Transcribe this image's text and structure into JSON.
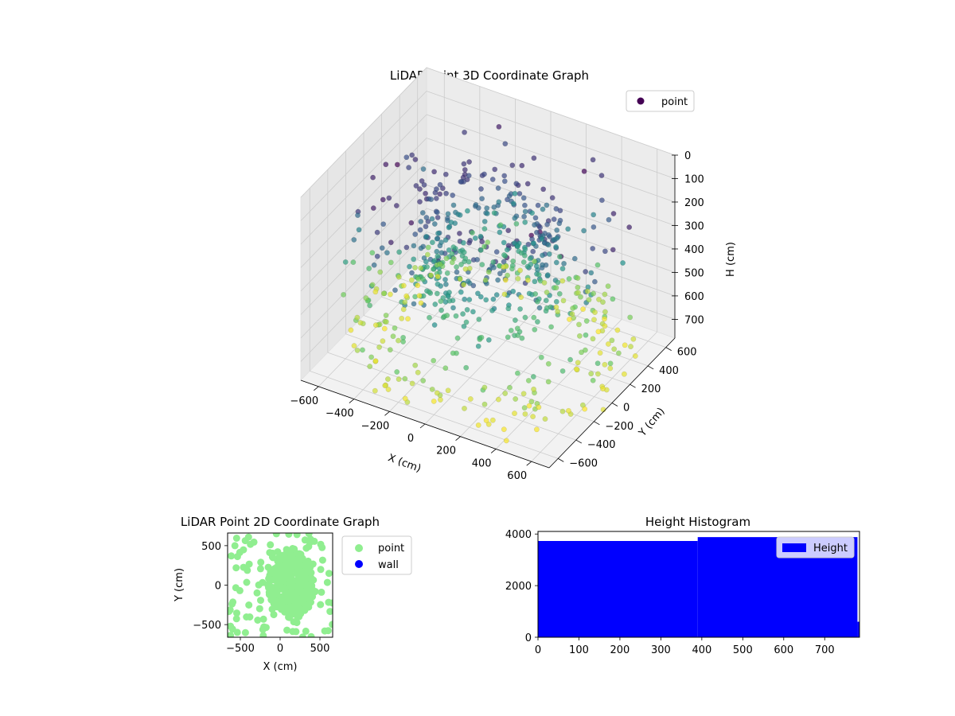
{
  "figure": {
    "background": "#ffffff",
    "axes_color": "#000000",
    "pane_color": "#f2f2f2",
    "grid_color": "#cccccc"
  },
  "chart_data": [
    {
      "type": "scatter",
      "projection": "3d",
      "title": "LiDAR Point 3D Coordinate Graph",
      "xlabel": "X (cm)",
      "ylabel": "Y (cm)",
      "zlabel": "H (cm)",
      "xlim": [
        -700,
        700
      ],
      "ylim": [
        -700,
        700
      ],
      "zlim": [
        0,
        780
      ],
      "z_inverted": true,
      "xticks": [
        -600,
        -400,
        -200,
        0,
        200,
        400,
        600
      ],
      "yticks": [
        -600,
        -400,
        -200,
        0,
        200,
        400,
        600
      ],
      "zticks": [
        0,
        100,
        200,
        300,
        400,
        500,
        600,
        700
      ],
      "colormap": "viridis",
      "colormap_stops": [
        "#440154",
        "#3b528b",
        "#21918c",
        "#5ec962",
        "#fde725"
      ],
      "grid": true,
      "legend": {
        "placement": "upper-right",
        "entries": [
          {
            "label": "point",
            "color": "#440154"
          }
        ]
      },
      "series": [
        {
          "name": "point",
          "description_points": "rings of points at radius 300–700 cm sampled over heights 0–780 cm"
        }
      ]
    },
    {
      "type": "scatter",
      "title": "LiDAR Point 2D Coordinate Graph",
      "xlabel": "X (cm)",
      "ylabel": "Y (cm)",
      "xlim": [
        -660,
        660
      ],
      "ylim": [
        -660,
        660
      ],
      "xticks": [
        -500,
        0,
        500
      ],
      "yticks": [
        -500,
        0,
        500
      ],
      "grid": false,
      "legend": {
        "placement": "outside-right",
        "entries": [
          {
            "label": "point",
            "color": "#90ee90"
          },
          {
            "label": "wall",
            "color": "#0000ff"
          }
        ]
      },
      "series": [
        {
          "name": "point",
          "color": "#90ee90"
        },
        {
          "name": "wall",
          "color": "#0000ff",
          "values": []
        }
      ]
    },
    {
      "type": "bar",
      "title": "Height Histogram",
      "xlabel": "",
      "ylabel": "",
      "xlim": [
        0,
        785
      ],
      "ylim": [
        0,
        4100
      ],
      "xticks": [
        0,
        100,
        200,
        300,
        400,
        500,
        600,
        700
      ],
      "yticks": [
        0,
        2000,
        4000
      ],
      "color": "#0000ff",
      "legend": {
        "placement": "upper-right",
        "entries": [
          {
            "label": "Height",
            "color": "#0000ff"
          }
        ]
      },
      "bins": [
        {
          "x0": 0,
          "x1": 390,
          "count": 3730
        },
        {
          "x0": 390,
          "x1": 780,
          "count": 3880
        },
        {
          "x0": 780,
          "x1": 785,
          "count": 600
        }
      ]
    }
  ]
}
